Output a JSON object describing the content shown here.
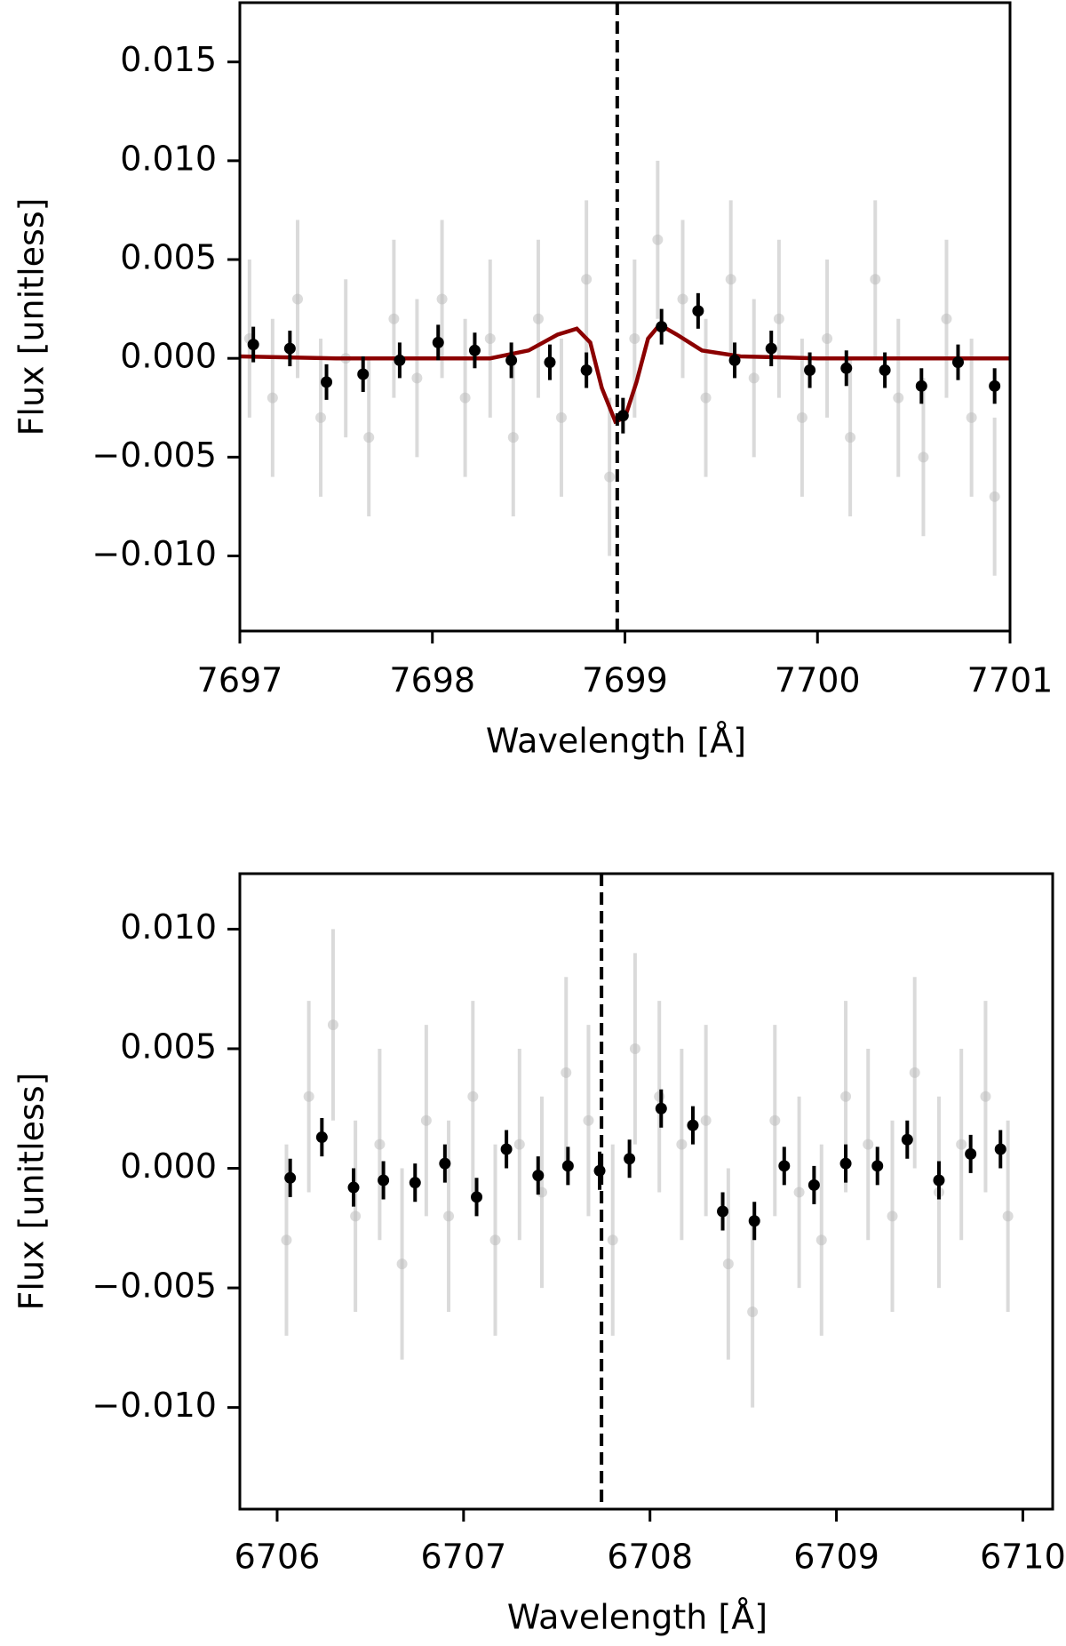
{
  "chart_data": [
    {
      "type": "errorbar",
      "x_label": "Wavelength [Å]",
      "y_label": "Flux [unitless]",
      "xlim": [
        7697,
        7701
      ],
      "ylim": [
        -0.0138,
        0.018
      ],
      "xticks": [
        7697,
        7698,
        7699,
        7700,
        7701
      ],
      "yticks": [
        {
          "value": -0.01,
          "label": "−0.010"
        },
        {
          "value": -0.005,
          "label": "−0.005"
        },
        {
          "value": 0,
          "label": "0.000"
        },
        {
          "value": 0.005,
          "label": "0.005"
        },
        {
          "value": 0.01,
          "label": "0.010"
        },
        {
          "value": 0.015,
          "label": "0.015"
        }
      ],
      "vline": 7698.96,
      "points": {
        "color": "#bdbdbd",
        "x": [
          7697.05,
          7697.17,
          7697.3,
          7697.42,
          7697.55,
          7697.67,
          7697.8,
          7697.92,
          7698.05,
          7698.17,
          7698.3,
          7698.42,
          7698.55,
          7698.67,
          7698.8,
          7698.92,
          7699.05,
          7699.17,
          7699.3,
          7699.42,
          7699.55,
          7699.67,
          7699.8,
          7699.92,
          7700.05,
          7700.17,
          7700.3,
          7700.42,
          7700.55,
          7700.67,
          7700.8,
          7700.92
        ],
        "values": [
          0.001,
          -0.002,
          0.003,
          -0.003,
          0,
          -0.004,
          0.002,
          -0.001,
          0.003,
          -0.002,
          0.001,
          -0.004,
          0.002,
          -0.003,
          0.004,
          -0.006,
          0.001,
          0.006,
          0.003,
          -0.002,
          0.004,
          -0.001,
          0.002,
          -0.003,
          0.001,
          -0.004,
          0.004,
          -0.002,
          -0.005,
          0.002,
          -0.003,
          -0.007
        ],
        "errors": [
          0.004,
          0.004,
          0.004,
          0.004,
          0.004,
          0.004,
          0.004,
          0.004,
          0.004,
          0.004,
          0.004,
          0.004,
          0.004,
          0.004,
          0.004,
          0.004,
          0.004,
          0.004,
          0.004,
          0.004,
          0.004,
          0.004,
          0.004,
          0.004,
          0.004,
          0.004,
          0.004,
          0.004,
          0.004,
          0.004,
          0.004,
          0.004
        ]
      },
      "binned": {
        "color": "#000000",
        "x": [
          7697.07,
          7697.26,
          7697.45,
          7697.64,
          7697.83,
          7698.03,
          7698.22,
          7698.41,
          7698.61,
          7698.8,
          7698.99,
          7699.19,
          7699.38,
          7699.57,
          7699.76,
          7699.96,
          7700.15,
          7700.35,
          7700.54,
          7700.73,
          7700.92
        ],
        "values": [
          0.0007,
          0.0005,
          -0.0012,
          -0.0008,
          -0.0001,
          0.0008,
          0.0004,
          -0.0001,
          -0.0002,
          -0.0006,
          -0.0029,
          0.0016,
          0.0024,
          -0.0001,
          0.0005,
          -0.0006,
          -0.0005,
          -0.0006,
          -0.0014,
          -0.0002,
          -0.0014
        ],
        "errors": [
          0.0009,
          0.0009,
          0.0009,
          0.0009,
          0.0009,
          0.0009,
          0.0009,
          0.0009,
          0.0009,
          0.0009,
          0.0009,
          0.0009,
          0.0009,
          0.0009,
          0.0009,
          0.0009,
          0.0009,
          0.0009,
          0.0009,
          0.0009,
          0.0009
        ]
      },
      "model": {
        "color": "#8b0000",
        "x": [
          7697,
          7697.5,
          7698.3,
          7698.5,
          7698.65,
          7698.75,
          7698.82,
          7698.88,
          7698.95,
          7699,
          7699.06,
          7699.12,
          7699.18,
          7699.27,
          7699.4,
          7699.6,
          7700,
          7701
        ],
        "values": [
          0.0001,
          0,
          0,
          0.0004,
          0.0012,
          0.0015,
          0.0008,
          -0.0015,
          -0.0032,
          -0.003,
          -0.0012,
          0.001,
          0.0017,
          0.0012,
          0.0004,
          0.0001,
          0,
          0
        ]
      }
    },
    {
      "type": "errorbar",
      "x_label": "Wavelength [Å]",
      "y_label": "Flux [unitless]",
      "xlim": [
        6705.8,
        6710.16
      ],
      "ylim": [
        -0.01425,
        0.01232
      ],
      "xticks": [
        6706,
        6707,
        6708,
        6709,
        6710
      ],
      "yticks": [
        {
          "value": -0.01,
          "label": "−0.010"
        },
        {
          "value": -0.005,
          "label": "−0.005"
        },
        {
          "value": 0,
          "label": "0.000"
        },
        {
          "value": 0.005,
          "label": "0.005"
        },
        {
          "value": 0.01,
          "label": "0.010"
        }
      ],
      "vline": 6707.74,
      "points": {
        "color": "#bdbdbd",
        "x": [
          6706.05,
          6706.17,
          6706.3,
          6706.42,
          6706.55,
          6706.67,
          6706.8,
          6706.92,
          6707.05,
          6707.17,
          6707.3,
          6707.42,
          6707.55,
          6707.67,
          6707.8,
          6707.92,
          6708.05,
          6708.17,
          6708.3,
          6708.42,
          6708.55,
          6708.67,
          6708.8,
          6708.92,
          6709.05,
          6709.17,
          6709.3,
          6709.42,
          6709.55,
          6709.67,
          6709.8,
          6709.92
        ],
        "values": [
          -0.003,
          0.003,
          0.006,
          -0.002,
          0.001,
          -0.004,
          0.002,
          -0.002,
          0.003,
          -0.003,
          0.001,
          -0.001,
          0.004,
          0.002,
          -0.003,
          0.005,
          0.003,
          0.001,
          0.002,
          -0.004,
          -0.006,
          0.002,
          -0.001,
          -0.003,
          0.003,
          0.001,
          -0.002,
          0.004,
          -0.001,
          0.001,
          0.003,
          -0.002
        ],
        "errors": [
          0.004,
          0.004,
          0.004,
          0.004,
          0.004,
          0.004,
          0.004,
          0.004,
          0.004,
          0.004,
          0.004,
          0.004,
          0.004,
          0.004,
          0.004,
          0.004,
          0.004,
          0.004,
          0.004,
          0.004,
          0.004,
          0.004,
          0.004,
          0.004,
          0.004,
          0.004,
          0.004,
          0.004,
          0.004,
          0.004,
          0.004,
          0.004
        ]
      },
      "binned": {
        "color": "#000000",
        "x": [
          6706.07,
          6706.24,
          6706.41,
          6706.57,
          6706.74,
          6706.9,
          6707.07,
          6707.23,
          6707.4,
          6707.56,
          6707.73,
          6707.89,
          6708.06,
          6708.23,
          6708.39,
          6708.56,
          6708.72,
          6708.88,
          6709.05,
          6709.22,
          6709.38,
          6709.55,
          6709.72,
          6709.88
        ],
        "values": [
          -0.0004,
          0.0013,
          -0.0008,
          -0.0005,
          -0.0006,
          0.0002,
          -0.0012,
          0.0008,
          -0.0003,
          0.0001,
          -0.0001,
          0.0004,
          0.0025,
          0.0018,
          -0.0018,
          -0.0022,
          0.0001,
          -0.0007,
          0.0002,
          0.0001,
          0.0012,
          -0.0005,
          0.0006,
          0.0008
        ],
        "errors": [
          0.0008,
          0.0008,
          0.0008,
          0.0008,
          0.0008,
          0.0008,
          0.0008,
          0.0008,
          0.0008,
          0.0008,
          0.0008,
          0.0008,
          0.0008,
          0.0008,
          0.0008,
          0.0008,
          0.0008,
          0.0008,
          0.0008,
          0.0008,
          0.0008,
          0.0008,
          0.0008,
          0.0008
        ]
      }
    }
  ]
}
